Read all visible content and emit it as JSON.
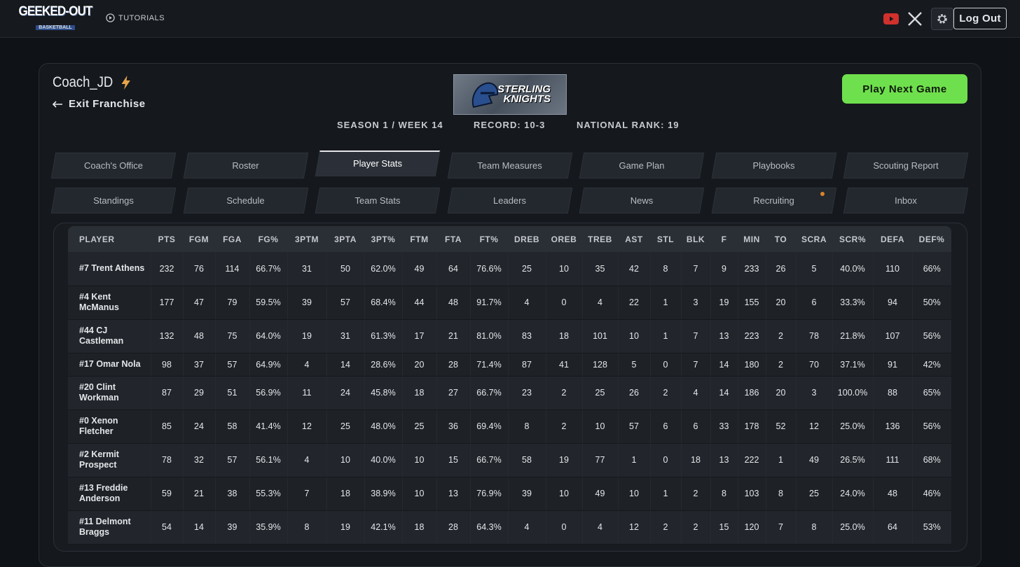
{
  "header": {
    "logo": "GEEKED-OUT",
    "logo_sub": "BASKETBALL",
    "tutorials": "TUTORIALS",
    "logout": "Log Out"
  },
  "franchise": {
    "coach": "Coach_JD",
    "exit": "Exit Franchise",
    "team_logo": [
      "STERLING",
      "KNIGHTS"
    ],
    "play": "Play Next Game",
    "season": "SEASON 1 / WEEK 14",
    "record": "RECORD: 10-3",
    "rank": "NATIONAL RANK: 19"
  },
  "tabs": {
    "active": "Player Stats",
    "notify": "Recruiting",
    "rows": [
      [
        "Coach's Office",
        "Roster",
        "Player Stats",
        "Team Measures",
        "Game Plan",
        "Playbooks",
        "Scouting Report"
      ],
      [
        "Standings",
        "Schedule",
        "Team Stats",
        "Leaders",
        "News",
        "Recruiting",
        "Inbox"
      ]
    ]
  },
  "table": {
    "columns": [
      "PLAYER",
      "PTS",
      "FGM",
      "FGA",
      "FG%",
      "3PTM",
      "3PTA",
      "3PT%",
      "FTM",
      "FTA",
      "FT%",
      "DREB",
      "OREB",
      "TREB",
      "AST",
      "STL",
      "BLK",
      "F",
      "MIN",
      "TO",
      "SCRA",
      "SCR%",
      "DEFA",
      "DEF%"
    ],
    "rows": [
      [
        "#7 Trent Athens",
        "232",
        "76",
        "114",
        "66.7%",
        "31",
        "50",
        "62.0%",
        "49",
        "64",
        "76.6%",
        "25",
        "10",
        "35",
        "42",
        "8",
        "7",
        "9",
        "233",
        "26",
        "5",
        "40.0%",
        "110",
        "66%"
      ],
      [
        "#4 Kent McManus",
        "177",
        "47",
        "79",
        "59.5%",
        "39",
        "57",
        "68.4%",
        "44",
        "48",
        "91.7%",
        "4",
        "0",
        "4",
        "22",
        "1",
        "3",
        "19",
        "155",
        "20",
        "6",
        "33.3%",
        "94",
        "50%"
      ],
      [
        "#44 CJ Castleman",
        "132",
        "48",
        "75",
        "64.0%",
        "19",
        "31",
        "61.3%",
        "17",
        "21",
        "81.0%",
        "83",
        "18",
        "101",
        "10",
        "1",
        "7",
        "13",
        "223",
        "2",
        "78",
        "21.8%",
        "107",
        "56%"
      ],
      [
        "#17 Omar Nola",
        "98",
        "37",
        "57",
        "64.9%",
        "4",
        "14",
        "28.6%",
        "20",
        "28",
        "71.4%",
        "87",
        "41",
        "128",
        "5",
        "0",
        "7",
        "14",
        "180",
        "2",
        "70",
        "37.1%",
        "91",
        "42%"
      ],
      [
        "#20 Clint Workman",
        "87",
        "29",
        "51",
        "56.9%",
        "11",
        "24",
        "45.8%",
        "18",
        "27",
        "66.7%",
        "23",
        "2",
        "25",
        "26",
        "2",
        "4",
        "14",
        "186",
        "20",
        "3",
        "100.0%",
        "88",
        "65%"
      ],
      [
        "#0 Xenon Fletcher",
        "85",
        "24",
        "58",
        "41.4%",
        "12",
        "25",
        "48.0%",
        "25",
        "36",
        "69.4%",
        "8",
        "2",
        "10",
        "57",
        "6",
        "6",
        "33",
        "178",
        "52",
        "12",
        "25.0%",
        "136",
        "56%"
      ],
      [
        "#2 Kermit Prospect",
        "78",
        "32",
        "57",
        "56.1%",
        "4",
        "10",
        "40.0%",
        "10",
        "15",
        "66.7%",
        "58",
        "19",
        "77",
        "1",
        "0",
        "18",
        "13",
        "222",
        "1",
        "49",
        "26.5%",
        "111",
        "68%"
      ],
      [
        "#13 Freddie Anderson",
        "59",
        "21",
        "38",
        "55.3%",
        "7",
        "18",
        "38.9%",
        "10",
        "13",
        "76.9%",
        "39",
        "10",
        "49",
        "10",
        "1",
        "2",
        "8",
        "103",
        "8",
        "25",
        "24.0%",
        "48",
        "46%"
      ],
      [
        "#11 Delmont Braggs",
        "54",
        "14",
        "39",
        "35.9%",
        "8",
        "19",
        "42.1%",
        "18",
        "28",
        "64.3%",
        "4",
        "0",
        "4",
        "12",
        "2",
        "2",
        "15",
        "120",
        "7",
        "8",
        "25.0%",
        "64",
        "53%"
      ]
    ]
  }
}
